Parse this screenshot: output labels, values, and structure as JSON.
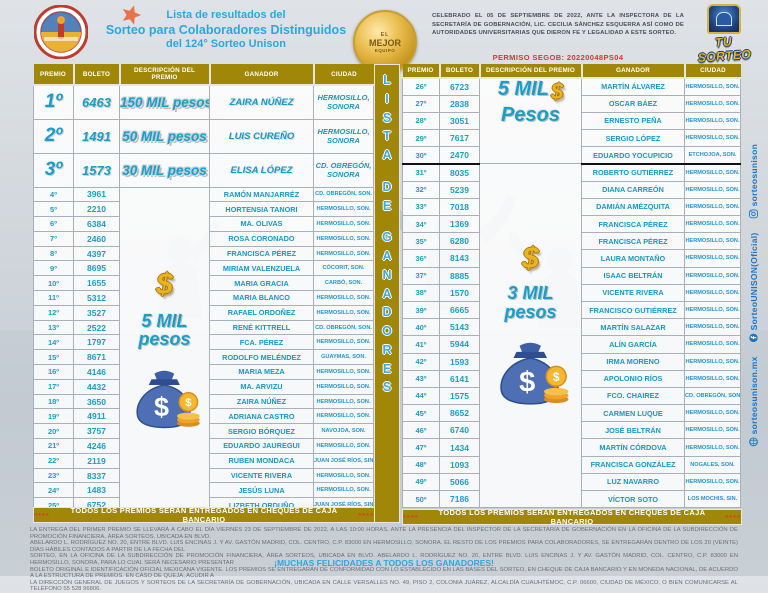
{
  "header": {
    "title_line1": "Lista de resultados del",
    "title_line2": "Sorteo para Colaboradores Distinguidos",
    "title_line3": "del 124° Sorteo Unison",
    "badge": {
      "line1": "EL",
      "line2": "MEJOR",
      "line3": "EQUIPO"
    },
    "info_text": "CELEBRADO EL 05 DE SEPTIEMBRE DE 2022, ANTE LA INSPECTORA DE LA SECRETARÍA DE GOBERNACIÓN, LIC. CECILIA SÁNCHEZ ESQUERRA ASÍ COMO DE AUTORIDADES UNIVERSITARIAS QUE DIERON FE Y LEGALIDAD A ESTE SORTEO.",
    "permiso": "PERMISO SEGOB: 20220048PS04",
    "tu_sorteo": "TU SORTEO"
  },
  "columns": [
    "PREMIO",
    "BOLETO",
    "DESCRIPCIÓN DEL PREMIO",
    "GANADOR",
    "CIUDAD"
  ],
  "vertical_banner": "LISTA DE GANADORES",
  "footer": {
    "stars": "****",
    "text": "TODOS LOS PREMIOS SERAN ENTREGADOS EN CHEQUES DE CAJA BANCARIO"
  },
  "left_table": {
    "top_rows": [
      {
        "premio": "1º",
        "boleto": "6463",
        "descripcion": "150 MIL pesos",
        "ganador": "ZAIRA NÚÑEZ",
        "ciudad": "HERMOSILLO, SONORA"
      },
      {
        "premio": "2º",
        "boleto": "1491",
        "descripcion": "50 MIL pesos",
        "ganador": "LUIS CUREÑO",
        "ciudad": "HERMOSILLO, SONORA"
      },
      {
        "premio": "3º",
        "boleto": "1573",
        "descripcion": "30 MIL pesos",
        "ganador": "ELISA LÓPEZ",
        "ciudad": "CD. OBREGÓN, SONORA"
      }
    ],
    "group_prize": {
      "line1": "5 MIL",
      "line2": "pesos"
    },
    "rows": [
      [
        "4º",
        "3961",
        "RAMÓN MANJARRÉZ",
        "CD. OBREGÓN, SON."
      ],
      [
        "5º",
        "2210",
        "HORTENSIA TANORI",
        "HERMOSILLO, SON."
      ],
      [
        "6º",
        "6384",
        "MA. OLIVAS",
        "HERMOSILLO, SON."
      ],
      [
        "7º",
        "2460",
        "ROSA CORONADO",
        "HERMOSILLO, SON."
      ],
      [
        "8º",
        "4397",
        "FRANCISCA PÉREZ",
        "HERMOSILLO, SON."
      ],
      [
        "9º",
        "8695",
        "MIRIAM VALENZUELA",
        "CÓCORIT, SON."
      ],
      [
        "10º",
        "1655",
        "MARIA GRACIA",
        "CARBÓ, SON."
      ],
      [
        "11º",
        "5312",
        "MARIA BLANCO",
        "HERMOSILLO, SON."
      ],
      [
        "12º",
        "3527",
        "RAFAEL ORDOÑEZ",
        "HERMOSILLO, SON."
      ],
      [
        "13º",
        "2522",
        "RENÉ KITTRELL",
        "CD. OBREGÓN, SON."
      ],
      [
        "14º",
        "1797",
        "FCA. PÉREZ",
        "HERMOSILLO, SON."
      ],
      [
        "15º",
        "8671",
        "RODOLFO MELÉNDEZ",
        "GUAYMAS, SON."
      ],
      [
        "16º",
        "4146",
        "MARIA MEZA",
        "HERMOSILLO, SON."
      ],
      [
        "17º",
        "4432",
        "MA. ARVIZU",
        "HERMOSILLO, SON."
      ],
      [
        "18º",
        "3650",
        "ZAIRA NÚÑEZ",
        "HERMOSILLO, SON."
      ],
      [
        "19º",
        "4911",
        "ADRIANA CASTRO",
        "HERMOSILLO, SON."
      ],
      [
        "20º",
        "3757",
        "SERGIO BÓRQUEZ",
        "NAVOJOA, SON."
      ],
      [
        "21º",
        "4246",
        "EDUARDO JAUREGUI",
        "HERMOSILLO, SON."
      ],
      [
        "22º",
        "2119",
        "RUBEN MONDACA",
        "JUAN JOSÉ RÍOS, SIN."
      ],
      [
        "23º",
        "8337",
        "VICENTE RIVERA",
        "HERMOSILLO, SON."
      ],
      [
        "24º",
        "1483",
        "JESÚS LUNA",
        "HERMOSILLO, SON."
      ],
      [
        "25º",
        "6752",
        "LIZBETH ORDUÑO",
        "JUAN JOSÉ RÍOS, SIN."
      ]
    ]
  },
  "right_table": {
    "group1_prize": {
      "line1": "5 MIL",
      "line2": "Pesos"
    },
    "group2_prize": {
      "line1": "3 MIL",
      "line2": "pesos"
    },
    "rows": [
      [
        "26º",
        "6723",
        "MARTÍN ÁLVAREZ",
        "HERMOSILLO, SON."
      ],
      [
        "27º",
        "2838",
        "OSCAR BÁEZ",
        "HERMOSILLO, SON."
      ],
      [
        "28º",
        "3051",
        "ERNESTO PEÑA",
        "HERMOSILLO, SON."
      ],
      [
        "29º",
        "7617",
        "SERGIO LÓPEZ",
        "HERMOSILLO, SON."
      ],
      [
        "30º",
        "2470",
        "EDUARDO YOCUPICIO",
        "ETCHOJOA, SON."
      ],
      [
        "31º",
        "8035",
        "ROBERTO GUTIÉRREZ",
        "HERMOSILLO, SON."
      ],
      [
        "32º",
        "5239",
        "DIANA CARREÓN",
        "HERMOSILLO, SON."
      ],
      [
        "33º",
        "7018",
        "DAMIÁN AMÉZQUITA",
        "HERMOSILLO, SON."
      ],
      [
        "34º",
        "1369",
        "FRANCISCA PÉREZ",
        "HERMOSILLO, SON."
      ],
      [
        "35º",
        "6280",
        "FRANCISCA PÉREZ",
        "HERMOSILLO, SON."
      ],
      [
        "36º",
        "8143",
        "LAURA MONTAÑO",
        "HERMOSILLO, SON."
      ],
      [
        "37º",
        "8885",
        "ISAAC BELTRÁN",
        "HERMOSILLO, SON."
      ],
      [
        "38º",
        "1570",
        "VICENTE RIVERA",
        "HERMOSILLO, SON."
      ],
      [
        "39º",
        "6665",
        "FRANCISCO GUTIÉRREZ",
        "HERMOSILLO, SON."
      ],
      [
        "40º",
        "5143",
        "MARTÍN SALAZAR",
        "HERMOSILLO, SON."
      ],
      [
        "41º",
        "5944",
        "ALÍN GARCÍA",
        "HERMOSILLO, SON."
      ],
      [
        "42º",
        "1593",
        "IRMA MORENO",
        "HERMOSILLO, SON."
      ],
      [
        "43º",
        "6141",
        "APOLONIO RÍOS",
        "HERMOSILLO, SON."
      ],
      [
        "44º",
        "1575",
        "FCO. CHAIREZ",
        "CD. OBREGÓN, SON."
      ],
      [
        "45º",
        "8652",
        "CARMEN LUQUE",
        "HERMOSILLO, SON."
      ],
      [
        "46º",
        "6740",
        "JOSÉ BELTRÁN",
        "HERMOSILLO, SON."
      ],
      [
        "47º",
        "1434",
        "MARTÍN CÓRDOVA",
        "HERMOSILLO, SON."
      ],
      [
        "48º",
        "1093",
        "FRANCISCA GONZÁLEZ",
        "NOGALES, SON."
      ],
      [
        "49º",
        "5066",
        "LUZ NAVARRO",
        "HERMOSILLO, SON."
      ],
      [
        "50º",
        "7186",
        "VÍCTOR SOTO",
        "LOS MOCHIS, SIN."
      ]
    ]
  },
  "social": {
    "items": [
      {
        "icon": "globe-icon",
        "label": "sorteosunison.mx"
      },
      {
        "icon": "facebook-icon",
        "label": "SorteoUNISON(Oficial)"
      },
      {
        "icon": "instagram-icon",
        "label": "sorteosunison"
      }
    ]
  },
  "disclaimer": {
    "lines": [
      "LA ENTREGA DEL PRIMER PREMIO SE LLEVARÁ A CABO EL DÍA VIERNES 23 DE SEPTIEMBRE DE 2022, A LAS 10:00 HORAS, ANTE LA PRESENCIA DEL INSPECTOR DE LA SECRETARÍA DE GOBERNACIÓN EN LA OFICINA DE LA SUBDIRECCIÓN DE PROMOCIÓN FINANCIERA, ÁREA SORTEOS, UBICADA EN BLVD.",
      "ABELARDO L. RODRÍGUEZ NO. 20, ENTRE BLVD. LUIS ENCINAS J. Y AV. GASTÓN MADRID, COL. CENTRO, C.P. 83000 EN HERMOSILLO, SONORA. EL RESTO DE LOS PREMIOS PARA COLABORADORES, SE ENTREGARÁN DENTRO DE LOS 20 (VEINTE) DÍAS HÁBILES CONTADOS A PARTIR DE LA FECHA DEL",
      "SORTEO, EN LA OFICINA DE LA SUBDIRECCIÓN DE PROMOCIÓN FINANCIERA, ÁREA SORTEOS, UBICADA EN BLVD. ABELARDO L. RODRÍGUEZ NO. 20, ENTRE BLVD. LUIS ENCINAS J. Y AV. GASTÓN MADRID, COL. CENTRO, C.P. 83000 EN HERMOSILLO, SONORA, PARA LO CUAL SERÁ NECESARIO PRESENTAR",
      "BOLETO ORIGINAL E IDENTIFICACIÓN OFICIAL MEXICANA VIGENTE. LOS PREMIOS SE ENTREGARÁN DE CONFORMIDAD CON LO ESTABLECIDO EN LAS BASES DEL SORTEO, EN CHEQUE DE CAJA BANCARIO Y EN MONEDA NACIONAL, DE ACUERDO A LA ESTRUCTURA DE PREMIOS. EN CASO DE QUEJA, ACUDIR A",
      "LA DIRECCIÓN GENERAL DE JUEGOS Y SORTEOS DE LA SECRETARÍA DE GOBERNACIÓN, UBICADA EN CALLE VERSALLES NO. 49, PISO 2, COLONIA JUÁREZ, ALCALDÍA CUAUHTÉMOC, C.P. 06600, CIUDAD DE MÉXICO, O BIEN COMUNICARSE AL TELÉFONO 55 528 96806."
    ],
    "congrats": "¡MUCHAS FELICIDADES A TODOS LOS GANADORES!"
  },
  "colors": {
    "gold_bar": "#a08708",
    "teal_text": "#1b9ec5",
    "title_blue": "#2ba7e0",
    "permiso_red": "#d9372a"
  }
}
